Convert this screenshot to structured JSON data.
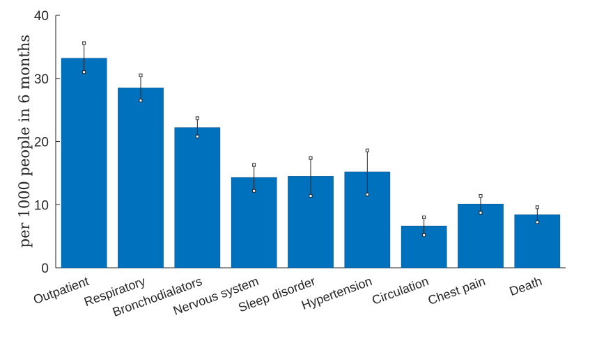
{
  "chart_data": {
    "type": "bar",
    "title": "",
    "xlabel": "",
    "ylabel": "per 1000 people in 6 months",
    "ylim": [
      0,
      40
    ],
    "yticks": [
      0,
      10,
      20,
      30,
      40
    ],
    "grid": false,
    "bar_color": "#0072BD",
    "categories": [
      "Outpatient",
      "Respiratory",
      "Bronchodialators",
      "Nervous system",
      "Sleep disorder",
      "Hypertension",
      "Circulation",
      "Chest pain",
      "Death"
    ],
    "values": [
      33.2,
      28.5,
      22.2,
      14.3,
      14.5,
      15.2,
      6.6,
      10.1,
      8.4
    ],
    "error_low": [
      31.0,
      26.5,
      20.8,
      12.2,
      11.4,
      11.6,
      5.2,
      8.7,
      7.2
    ],
    "error_high": [
      35.6,
      30.5,
      23.7,
      16.3,
      17.4,
      18.6,
      8.0,
      11.4,
      9.6
    ]
  }
}
